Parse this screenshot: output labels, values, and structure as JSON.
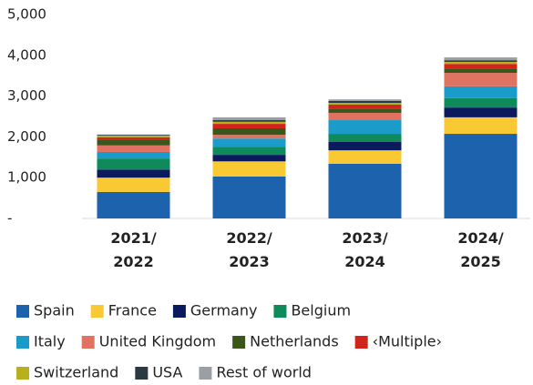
{
  "chart_data": {
    "type": "stacked_bar",
    "categories": [
      "2021/\n2022",
      "2022/\n2023",
      "2023/\n2024",
      "2024/\n2025"
    ],
    "series": [
      {
        "name": "Spain",
        "color": "#1c62ad",
        "values": [
          650,
          1030,
          1340,
          2075
        ]
      },
      {
        "name": "France",
        "color": "#f8c932",
        "values": [
          350,
          370,
          330,
          405
        ]
      },
      {
        "name": "Germany",
        "color": "#0b1a5c",
        "values": [
          200,
          160,
          205,
          240
        ]
      },
      {
        "name": "Belgium",
        "color": "#0f8a5b",
        "values": [
          270,
          200,
          200,
          230
        ]
      },
      {
        "name": "Italy",
        "color": "#1a9bc9",
        "values": [
          160,
          200,
          335,
          290
        ]
      },
      {
        "name": "United Kingdom",
        "color": "#e07262",
        "values": [
          160,
          90,
          180,
          330
        ]
      },
      {
        "name": "Netherlands",
        "color": "#3b561b",
        "values": [
          130,
          160,
          90,
          110
        ]
      },
      {
        "name": "‹Multiple›",
        "color": "#d0251a",
        "values": [
          70,
          110,
          110,
          110
        ]
      },
      {
        "name": "Switzerland",
        "color": "#b8b01f",
        "values": [
          40,
          50,
          45,
          50
        ]
      },
      {
        "name": "USA",
        "color": "#2b3a40",
        "values": [
          20,
          40,
          45,
          40
        ]
      },
      {
        "name": "Rest of world",
        "color": "#9a9fa4",
        "values": [
          10,
          70,
          40,
          70
        ]
      }
    ],
    "ylim": [
      0,
      5000
    ],
    "yticks": [
      {
        "value": 0,
        "label": "-"
      },
      {
        "value": 1000,
        "label": "1,000"
      },
      {
        "value": 2000,
        "label": "2,000"
      },
      {
        "value": 3000,
        "label": "3,000"
      },
      {
        "value": 4000,
        "label": "4,000"
      },
      {
        "value": 5000,
        "label": "5,000"
      }
    ],
    "legend": "bottom"
  }
}
